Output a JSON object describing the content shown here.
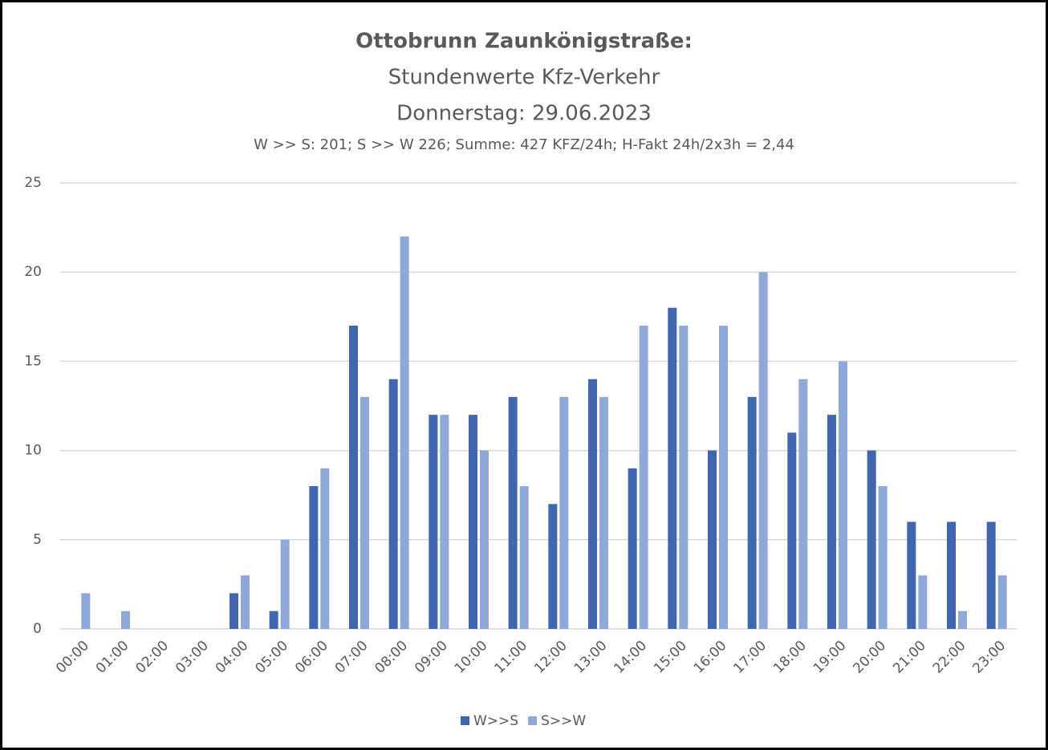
{
  "chart_data": {
    "type": "bar",
    "title": "Ottobrunn Zaunkönigstraße:",
    "subtitle": [
      "Stundenwerte Kfz-Verkehr",
      "Donnerstag: 29.06.2023"
    ],
    "annotation": "W >> S: 201; S >> W 226; Summe: 427 KFZ/24h; H-Fakt 24h/2x3h = 2,44",
    "categories": [
      "00:00",
      "01:00",
      "02:00",
      "03:00",
      "04:00",
      "05:00",
      "06:00",
      "07:00",
      "08:00",
      "09:00",
      "10:00",
      "11:00",
      "12:00",
      "13:00",
      "14:00",
      "15:00",
      "16:00",
      "17:00",
      "18:00",
      "19:00",
      "20:00",
      "21:00",
      "22:00",
      "23:00"
    ],
    "series": [
      {
        "name": "W>>S",
        "color": "#4066b0",
        "values": [
          0,
          0,
          0,
          0,
          2,
          1,
          8,
          17,
          14,
          12,
          12,
          13,
          7,
          14,
          9,
          18,
          10,
          13,
          11,
          12,
          10,
          6,
          6,
          6
        ]
      },
      {
        "name": "S>>W",
        "color": "#8fa8d8",
        "values": [
          2,
          1,
          0,
          0,
          3,
          5,
          9,
          13,
          22,
          12,
          10,
          8,
          13,
          13,
          17,
          17,
          17,
          20,
          14,
          15,
          8,
          3,
          1,
          3
        ]
      }
    ],
    "ylim": [
      0,
      25
    ],
    "yticks": [
      0,
      5,
      10,
      15,
      20,
      25
    ],
    "grid": true,
    "legend": "bottom"
  }
}
